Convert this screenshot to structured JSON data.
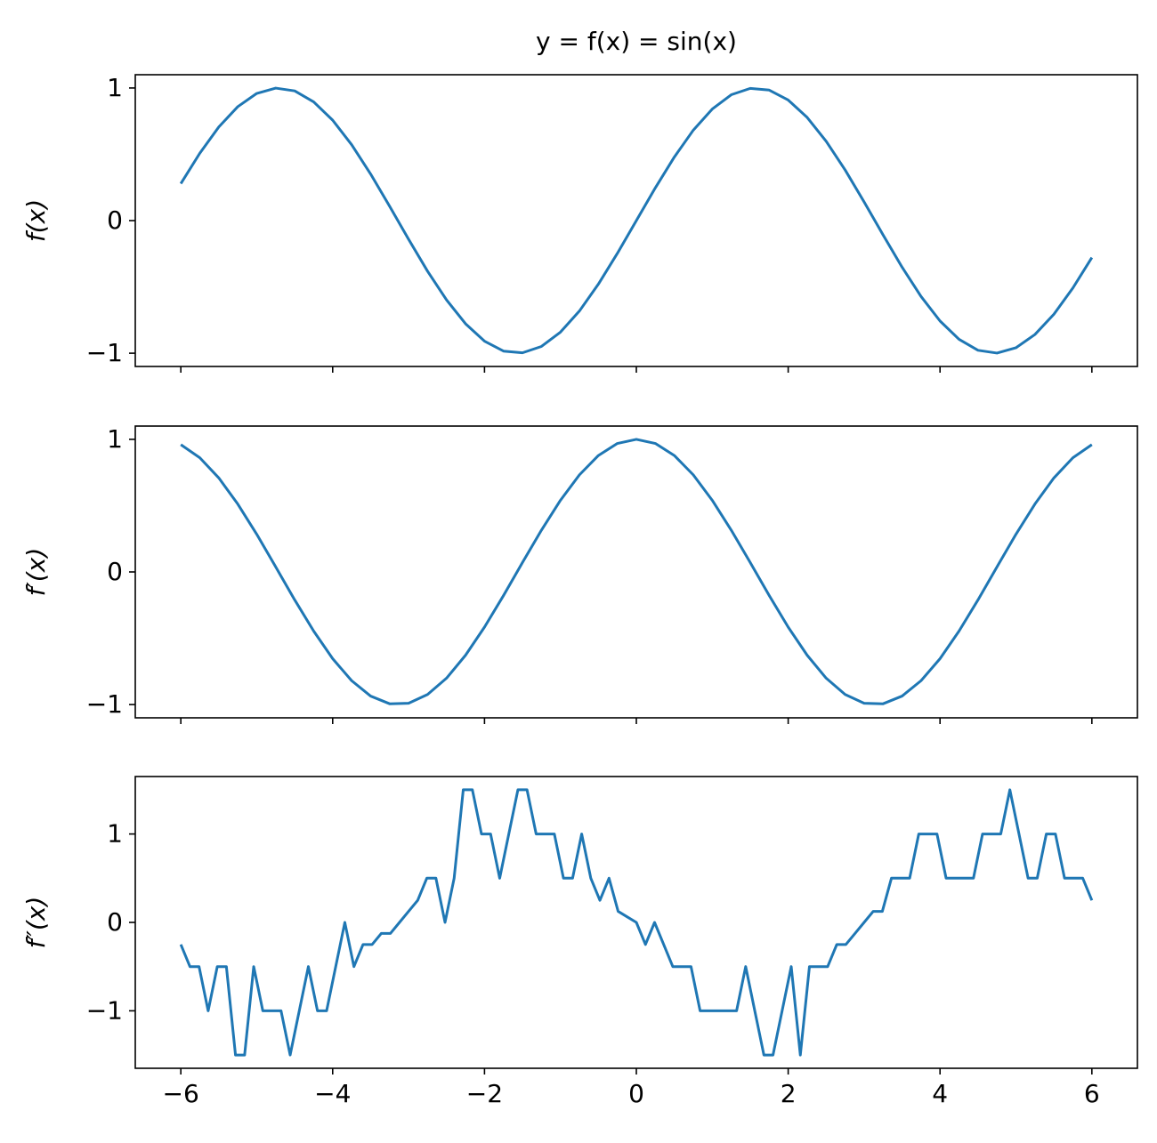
{
  "chart_data": [
    {
      "type": "line",
      "title": "y = f(x) = sin(x)",
      "ylabel": "f(x)",
      "x": [
        -6,
        -5.75,
        -5.5,
        -5.25,
        -5,
        -4.75,
        -4.5,
        -4.25,
        -4,
        -3.75,
        -3.5,
        -3.25,
        -3,
        -2.75,
        -2.5,
        -2.25,
        -2,
        -1.75,
        -1.5,
        -1.25,
        -1,
        -0.75,
        -0.5,
        -0.25,
        0,
        0.25,
        0.5,
        0.75,
        1,
        1.25,
        1.5,
        1.75,
        2,
        2.25,
        2.5,
        2.75,
        3,
        3.25,
        3.5,
        3.75,
        4,
        4.25,
        4.5,
        4.75,
        5,
        5.25,
        5.5,
        5.75,
        6
      ],
      "values": [
        0.279,
        0.508,
        0.706,
        0.859,
        0.959,
        0.999,
        0.978,
        0.895,
        0.757,
        0.572,
        0.351,
        0.108,
        -0.141,
        -0.382,
        -0.598,
        -0.778,
        -0.909,
        -0.984,
        -0.997,
        -0.949,
        -0.841,
        -0.682,
        -0.479,
        -0.247,
        0,
        0.247,
        0.479,
        0.682,
        0.841,
        0.949,
        0.997,
        0.984,
        0.909,
        0.778,
        0.598,
        0.382,
        0.141,
        -0.108,
        -0.351,
        -0.572,
        -0.757,
        -0.895,
        -0.978,
        -0.999,
        -0.959,
        -0.859,
        -0.706,
        -0.508,
        -0.279
      ],
      "color": "#1f77b4",
      "xlim": [
        -6.6,
        6.6
      ],
      "ylim": [
        -1.1,
        1.1
      ],
      "xticks": [
        -6,
        -4,
        -2,
        0,
        2,
        4,
        6
      ],
      "yticks": [
        {
          "value": -1,
          "label": "−1"
        },
        0,
        1
      ]
    },
    {
      "type": "line",
      "ylabel": "f′(x)",
      "x": [
        -6,
        -5.75,
        -5.5,
        -5.25,
        -5,
        -4.75,
        -4.5,
        -4.25,
        -4,
        -3.75,
        -3.5,
        -3.25,
        -3,
        -2.75,
        -2.5,
        -2.25,
        -2,
        -1.75,
        -1.5,
        -1.25,
        -1,
        -0.75,
        -0.5,
        -0.25,
        0,
        0.25,
        0.5,
        0.75,
        1,
        1.25,
        1.5,
        1.75,
        2,
        2.25,
        2.5,
        2.75,
        3,
        3.25,
        3.5,
        3.75,
        4,
        4.25,
        4.5,
        4.75,
        5,
        5.25,
        5.5,
        5.75,
        6
      ],
      "values": [
        0.96,
        0.861,
        0.709,
        0.512,
        0.284,
        0.038,
        -0.211,
        -0.446,
        -0.654,
        -0.82,
        -0.936,
        -0.994,
        -0.99,
        -0.924,
        -0.801,
        -0.628,
        -0.416,
        -0.178,
        0.071,
        0.315,
        0.54,
        0.732,
        0.878,
        0.969,
        1,
        0.969,
        0.878,
        0.732,
        0.54,
        0.315,
        0.071,
        -0.178,
        -0.416,
        -0.628,
        -0.801,
        -0.924,
        -0.99,
        -0.994,
        -0.936,
        -0.82,
        -0.654,
        -0.446,
        -0.211,
        0.038,
        0.284,
        0.512,
        0.709,
        0.861,
        0.96
      ],
      "color": "#1f77b4",
      "xlim": [
        -6.6,
        6.6
      ],
      "ylim": [
        -1.1,
        1.1
      ],
      "xticks": [
        -6,
        -4,
        -2,
        0,
        2,
        4,
        6
      ],
      "yticks": [
        {
          "value": -1,
          "label": "−1"
        },
        0,
        1
      ]
    },
    {
      "type": "line",
      "ylabel": "f″(x)",
      "x": [
        -6,
        -5.88,
        -5.76,
        -5.64,
        -5.52,
        -5.4,
        -5.28,
        -5.16,
        -5.04,
        -4.92,
        -4.8,
        -4.68,
        -4.56,
        -4.44,
        -4.32,
        -4.2,
        -4.08,
        -3.96,
        -3.84,
        -3.72,
        -3.6,
        -3.48,
        -3.36,
        -3.24,
        -3.12,
        -3,
        -2.88,
        -2.76,
        -2.64,
        -2.52,
        -2.4,
        -2.28,
        -2.16,
        -2.04,
        -1.92,
        -1.8,
        -1.68,
        -1.56,
        -1.44,
        -1.32,
        -1.2,
        -1.08,
        -0.96,
        -0.84,
        -0.72,
        -0.6,
        -0.48,
        -0.36,
        -0.24,
        -0.12,
        0,
        0.12,
        0.24,
        0.36,
        0.48,
        0.6,
        0.72,
        0.84,
        0.96,
        1.08,
        1.2,
        1.32,
        1.44,
        1.56,
        1.68,
        1.8,
        1.92,
        2.04,
        2.16,
        2.28,
        2.4,
        2.52,
        2.64,
        2.76,
        2.88,
        3,
        3.12,
        3.24,
        3.36,
        3.48,
        3.6,
        3.72,
        3.84,
        3.96,
        4.08,
        4.2,
        4.32,
        4.44,
        4.56,
        4.68,
        4.8,
        4.92,
        5.04,
        5.16,
        5.28,
        5.4,
        5.52,
        5.64,
        5.76,
        5.88,
        6
      ],
      "values": [
        -0.25,
        -0.5,
        -0.5,
        -1,
        -0.5,
        -0.5,
        -1.5,
        -1.5,
        -0.5,
        -1,
        -1,
        -1,
        -1.5,
        -1,
        -0.5,
        -1,
        -1,
        -0.5,
        0,
        -0.5,
        -0.25,
        -0.25,
        -0.125,
        -0.125,
        0,
        0.125,
        0.25,
        0.5,
        0.5,
        0,
        0.5,
        1.5,
        1.5,
        1,
        1,
        0.5,
        1,
        1.5,
        1.5,
        1,
        1,
        1,
        0.5,
        0.5,
        1,
        0.5,
        0.25,
        0.5,
        0.125,
        0.0625,
        0,
        -0.25,
        0,
        -0.25,
        -0.5,
        -0.5,
        -0.5,
        -1,
        -1,
        -1,
        -1,
        -1,
        -0.5,
        -1,
        -1.5,
        -1.5,
        -1,
        -0.5,
        -1.5,
        -0.5,
        -0.5,
        -0.5,
        -0.25,
        -0.25,
        -0.125,
        0,
        0.125,
        0.125,
        0.5,
        0.5,
        0.5,
        1,
        1,
        1,
        0.5,
        0.5,
        0.5,
        0.5,
        1,
        1,
        1,
        1.5,
        1,
        0.5,
        0.5,
        1,
        1,
        0.5,
        0.5,
        0.5,
        0.25
      ],
      "color": "#1f77b4",
      "xlim": [
        -6.6,
        6.6
      ],
      "ylim": [
        -1.65,
        1.65
      ],
      "xticks": [
        {
          "value": -6,
          "label": "−6"
        },
        {
          "value": -4,
          "label": "−4"
        },
        {
          "value": -2,
          "label": "−2"
        },
        0,
        2,
        4,
        6
      ],
      "yticks": [
        {
          "value": -1,
          "label": "−1"
        },
        0,
        1
      ]
    }
  ]
}
